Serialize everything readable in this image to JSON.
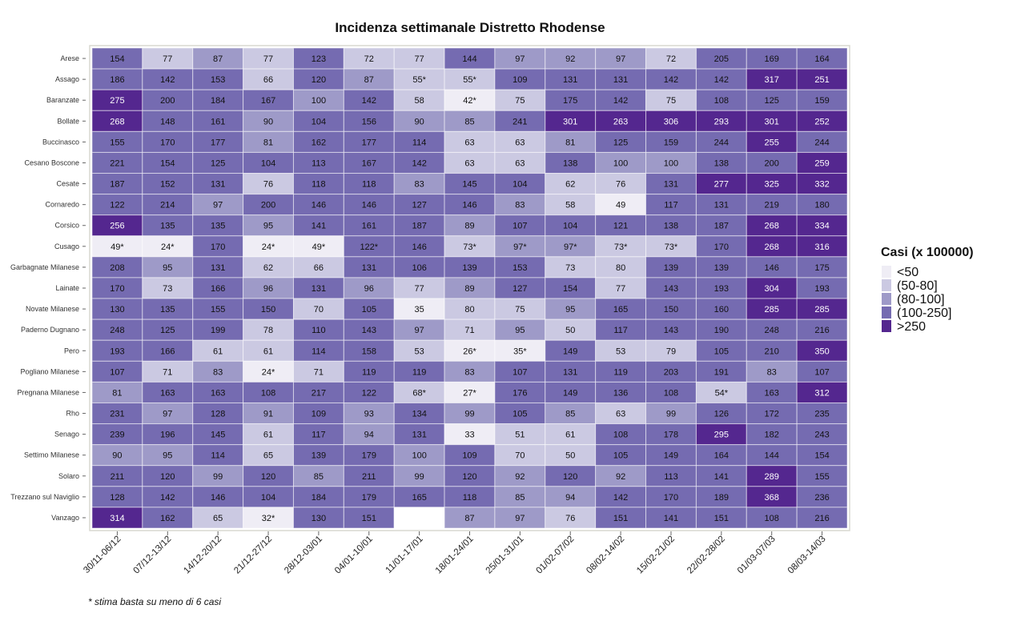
{
  "chart_data": {
    "type": "heatmap",
    "title": "Incidenza settimanale Distretto Rhodense",
    "xlabel": "",
    "ylabel": "",
    "footnote": "* stima basta su meno di 6 casi",
    "columns": [
      "30/11-06/12",
      "07/12-13/12",
      "14/12-20/12",
      "21/12-27/12",
      "28/12-03/01",
      "04/01-10/01",
      "11/01-17/01",
      "18/01-24/01",
      "25/01-31/01",
      "01/02-07/02",
      "08/02-14/02",
      "15/02-21/02",
      "22/02-28/02",
      "01/03-07/03",
      "08/03-14/03"
    ],
    "rows": [
      {
        "name": "Arese",
        "values": [
          "154",
          "77",
          "87",
          "77",
          "123",
          "72",
          "77",
          "144",
          "97",
          "92",
          "97",
          "72",
          "205",
          "169",
          "164"
        ]
      },
      {
        "name": "Assago",
        "values": [
          "186",
          "142",
          "153",
          "66",
          "120",
          "87",
          "55*",
          "55*",
          "109",
          "131",
          "131",
          "142",
          "142",
          "317",
          "251"
        ]
      },
      {
        "name": "Baranzate",
        "values": [
          "275",
          "200",
          "184",
          "167",
          "100",
          "142",
          "58",
          "42*",
          "75",
          "175",
          "142",
          "75",
          "108",
          "125",
          "159"
        ]
      },
      {
        "name": "Bollate",
        "values": [
          "268",
          "148",
          "161",
          "90",
          "104",
          "156",
          "90",
          "85",
          "241",
          "301",
          "263",
          "306",
          "293",
          "301",
          "252"
        ]
      },
      {
        "name": "Buccinasco",
        "values": [
          "155",
          "170",
          "177",
          "81",
          "162",
          "177",
          "114",
          "63",
          "63",
          "81",
          "125",
          "159",
          "244",
          "255",
          "244"
        ]
      },
      {
        "name": "Cesano Boscone",
        "values": [
          "221",
          "154",
          "125",
          "104",
          "113",
          "167",
          "142",
          "63",
          "63",
          "138",
          "100",
          "100",
          "138",
          "200",
          "259"
        ]
      },
      {
        "name": "Cesate",
        "values": [
          "187",
          "152",
          "131",
          "76",
          "118",
          "118",
          "83",
          "145",
          "104",
          "62",
          "76",
          "131",
          "277",
          "325",
          "332"
        ]
      },
      {
        "name": "Cornaredo",
        "values": [
          "122",
          "214",
          "97",
          "200",
          "146",
          "146",
          "127",
          "146",
          "83",
          "58",
          "49",
          "117",
          "131",
          "219",
          "180"
        ]
      },
      {
        "name": "Corsico",
        "values": [
          "256",
          "135",
          "135",
          "95",
          "141",
          "161",
          "187",
          "89",
          "107",
          "104",
          "121",
          "138",
          "187",
          "268",
          "334"
        ]
      },
      {
        "name": "Cusago",
        "values": [
          "49*",
          "24*",
          "170",
          "24*",
          "49*",
          "122*",
          "146",
          "73*",
          "97*",
          "97*",
          "73*",
          "73*",
          "170",
          "268",
          "316"
        ]
      },
      {
        "name": "Garbagnate Milanese",
        "values": [
          "208",
          "95",
          "131",
          "62",
          "66",
          "131",
          "106",
          "139",
          "153",
          "73",
          "80",
          "139",
          "139",
          "146",
          "175"
        ]
      },
      {
        "name": "Lainate",
        "values": [
          "170",
          "73",
          "166",
          "96",
          "131",
          "96",
          "77",
          "89",
          "127",
          "154",
          "77",
          "143",
          "193",
          "304",
          "193"
        ]
      },
      {
        "name": "Novate Milanese",
        "values": [
          "130",
          "135",
          "155",
          "150",
          "70",
          "105",
          "35",
          "80",
          "75",
          "95",
          "165",
          "150",
          "160",
          "285",
          "285"
        ]
      },
      {
        "name": "Paderno Dugnano",
        "values": [
          "248",
          "125",
          "199",
          "78",
          "110",
          "143",
          "97",
          "71",
          "95",
          "50",
          "117",
          "143",
          "190",
          "248",
          "216"
        ]
      },
      {
        "name": "Pero",
        "values": [
          "193",
          "166",
          "61",
          "61",
          "114",
          "158",
          "53",
          "26*",
          "35*",
          "149",
          "53",
          "79",
          "105",
          "210",
          "350"
        ]
      },
      {
        "name": "Pogliano Milanese",
        "values": [
          "107",
          "71",
          "83",
          "24*",
          "71",
          "119",
          "119",
          "83",
          "107",
          "131",
          "119",
          "203",
          "191",
          "83",
          "107"
        ]
      },
      {
        "name": "Pregnana Milanese",
        "values": [
          "81",
          "163",
          "163",
          "108",
          "217",
          "122",
          "68*",
          "27*",
          "176",
          "149",
          "136",
          "108",
          "54*",
          "163",
          "312"
        ]
      },
      {
        "name": "Rho",
        "values": [
          "231",
          "97",
          "128",
          "91",
          "109",
          "93",
          "134",
          "99",
          "105",
          "85",
          "63",
          "99",
          "126",
          "172",
          "235"
        ]
      },
      {
        "name": "Senago",
        "values": [
          "239",
          "196",
          "145",
          "61",
          "117",
          "94",
          "131",
          "33",
          "51",
          "61",
          "108",
          "178",
          "295",
          "182",
          "243"
        ]
      },
      {
        "name": "Settimo Milanese",
        "values": [
          "90",
          "95",
          "114",
          "65",
          "139",
          "179",
          "100",
          "109",
          "70",
          "50",
          "105",
          "149",
          "164",
          "144",
          "154"
        ]
      },
      {
        "name": "Solaro",
        "values": [
          "211",
          "120",
          "99",
          "120",
          "85",
          "211",
          "99",
          "120",
          "92",
          "120",
          "92",
          "113",
          "141",
          "289",
          "155"
        ]
      },
      {
        "name": "Trezzano sul Naviglio",
        "values": [
          "128",
          "142",
          "146",
          "104",
          "184",
          "179",
          "165",
          "118",
          "85",
          "94",
          "142",
          "170",
          "189",
          "368",
          "236"
        ]
      },
      {
        "name": "Vanzago",
        "values": [
          "314",
          "162",
          "65",
          "32*",
          "130",
          "151",
          "",
          "87",
          "97",
          "76",
          "151",
          "141",
          "151",
          "108",
          "216"
        ]
      }
    ],
    "legend": {
      "title": "Casi (x 100000)",
      "position": "right",
      "bins": [
        {
          "label": "<50",
          "color": "#efedf5"
        },
        {
          "label": "(50-80]",
          "color": "#cbc9e2"
        },
        {
          "label": "(80-100]",
          "color": "#9e9ac8"
        },
        {
          "label": "(100-250]",
          "color": "#756bb1"
        },
        {
          "label": ">250",
          "color": "#54278f"
        }
      ]
    },
    "grid": false
  }
}
